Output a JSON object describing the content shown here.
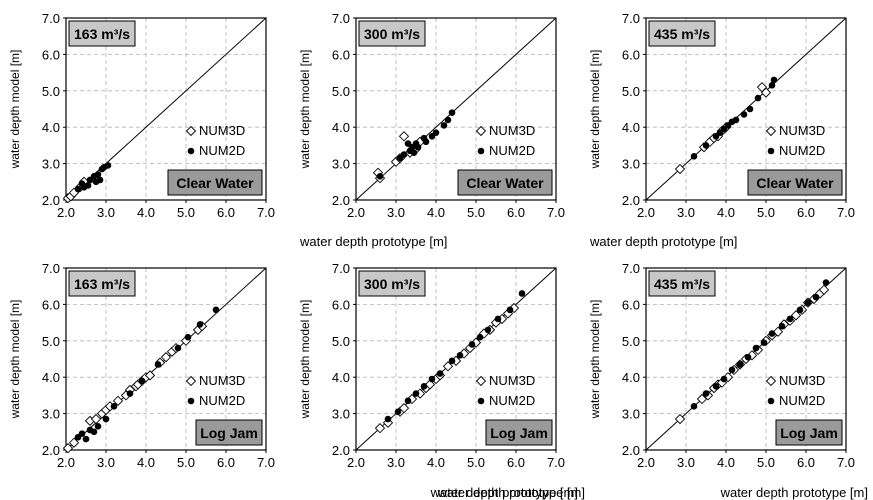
{
  "chart_data": [
    {
      "type": "scatter",
      "title": "163 m³/s",
      "condition": "Clear Water",
      "xlabel": "",
      "ylabel": "water depth model [m]",
      "xlim": [
        2.0,
        7.0
      ],
      "ylim": [
        2.0,
        7.0
      ],
      "xticks": [
        "2.0",
        "3.0",
        "4.0",
        "5.0",
        "6.0",
        "7.0"
      ],
      "yticks": [
        "2.0",
        "3.0",
        "4.0",
        "5.0",
        "6.0",
        "7.0"
      ],
      "grid": true,
      "reference_line": "y = x",
      "legend": [
        "NUM3D",
        "NUM2D"
      ],
      "series": [
        {
          "name": "NUM3D",
          "marker": "open-diamond",
          "x": [
            2.05,
            2.12,
            2.2,
            2.35,
            2.45
          ],
          "y": [
            2.05,
            2.1,
            2.2,
            2.35,
            2.5
          ]
        },
        {
          "name": "NUM2D",
          "marker": "filled-circle",
          "x": [
            2.3,
            2.4,
            2.45,
            2.55,
            2.6,
            2.7,
            2.75,
            2.8,
            2.85,
            2.9,
            2.95,
            3.05
          ],
          "y": [
            2.3,
            2.45,
            2.35,
            2.4,
            2.55,
            2.65,
            2.5,
            2.7,
            2.55,
            2.85,
            2.9,
            2.95
          ]
        }
      ]
    },
    {
      "type": "scatter",
      "title": "300 m³/s",
      "condition": "Clear Water",
      "xlabel": "water depth prototype [m]",
      "ylabel": "water depth model [m]",
      "xlim": [
        2.0,
        7.0
      ],
      "ylim": [
        2.0,
        7.0
      ],
      "xticks": [
        "2.0",
        "3.0",
        "4.0",
        "5.0",
        "6.0",
        "7.0"
      ],
      "yticks": [
        "2.0",
        "3.0",
        "4.0",
        "5.0",
        "6.0",
        "7.0"
      ],
      "grid": true,
      "reference_line": "y = x",
      "legend": [
        "NUM3D",
        "NUM2D"
      ],
      "series": [
        {
          "name": "NUM3D",
          "marker": "open-diamond",
          "x": [
            2.55,
            2.6,
            3.0,
            3.1,
            3.2,
            3.35,
            3.5,
            3.6
          ],
          "y": [
            2.75,
            2.6,
            3.05,
            3.15,
            3.75,
            3.3,
            3.4,
            3.6
          ]
        },
        {
          "name": "NUM2D",
          "marker": "filled-circle",
          "x": [
            2.6,
            3.1,
            3.2,
            3.3,
            3.35,
            3.4,
            3.45,
            3.5,
            3.55,
            3.7,
            3.75,
            3.9,
            4.0,
            4.2,
            4.3,
            4.4
          ],
          "y": [
            2.65,
            3.15,
            3.25,
            3.55,
            3.35,
            3.45,
            3.3,
            3.55,
            3.45,
            3.7,
            3.6,
            3.75,
            3.85,
            4.05,
            4.2,
            4.4
          ]
        }
      ]
    },
    {
      "type": "scatter",
      "title": "435 m³/s",
      "condition": "Clear Water",
      "xlabel": "water depth prototype [m]",
      "ylabel": "water depth model [m]",
      "xlim": [
        2.0,
        7.0
      ],
      "ylim": [
        2.0,
        7.0
      ],
      "xticks": [
        "2.0",
        "3.0",
        "4.0",
        "5.0",
        "6.0",
        "7.0"
      ],
      "yticks": [
        "2.0",
        "3.0",
        "4.0",
        "5.0",
        "6.0",
        "7.0"
      ],
      "grid": true,
      "reference_line": "y = x",
      "legend": [
        "NUM3D",
        "NUM2D"
      ],
      "series": [
        {
          "name": "NUM3D",
          "marker": "open-diamond",
          "x": [
            2.85,
            3.45,
            3.6,
            3.7,
            3.8,
            3.9,
            4.0,
            4.9,
            5.0
          ],
          "y": [
            2.85,
            3.45,
            3.6,
            3.7,
            3.75,
            3.9,
            4.0,
            5.1,
            4.95
          ]
        },
        {
          "name": "NUM2D",
          "marker": "filled-circle",
          "x": [
            3.2,
            3.5,
            3.75,
            3.85,
            3.95,
            4.05,
            4.15,
            4.25,
            4.45,
            4.6,
            4.8,
            5.15,
            5.2
          ],
          "y": [
            3.2,
            3.5,
            3.75,
            3.85,
            3.95,
            4.05,
            4.15,
            4.2,
            4.35,
            4.5,
            4.8,
            5.15,
            5.3
          ]
        }
      ]
    },
    {
      "type": "scatter",
      "title": "163 m³/s",
      "condition": "Log Jam",
      "xlabel": "water depth prototype [m]",
      "ylabel": "water depth model [m]",
      "xlim": [
        2.0,
        7.0
      ],
      "ylim": [
        2.0,
        7.0
      ],
      "xticks": [
        "2.0",
        "3.0",
        "4.0",
        "5.0",
        "6.0",
        "7.0"
      ],
      "yticks": [
        "2.0",
        "3.0",
        "4.0",
        "5.0",
        "6.0",
        "7.0"
      ],
      "grid": true,
      "reference_line": "y = x",
      "legend": [
        "NUM3D",
        "NUM2D"
      ],
      "series": [
        {
          "name": "NUM3D",
          "marker": "open-diamond",
          "x": [
            2.05,
            2.2,
            2.6,
            2.75,
            2.9,
            3.0,
            3.1,
            3.3,
            3.5,
            3.6,
            3.75,
            3.8,
            3.9,
            4.0,
            4.1,
            4.35,
            4.5,
            4.65,
            4.75,
            5.0,
            5.3,
            5.4
          ],
          "y": [
            2.05,
            2.2,
            2.8,
            2.85,
            3.0,
            3.1,
            3.2,
            3.35,
            3.5,
            3.65,
            3.75,
            3.8,
            3.9,
            4.0,
            4.05,
            4.4,
            4.55,
            4.7,
            4.8,
            5.0,
            5.3,
            5.4
          ]
        },
        {
          "name": "NUM2D",
          "marker": "filled-circle",
          "x": [
            2.3,
            2.4,
            2.5,
            2.6,
            2.7,
            2.8,
            3.0,
            3.2,
            3.6,
            3.9,
            4.3,
            4.8,
            5.05,
            5.35,
            5.75
          ],
          "y": [
            2.35,
            2.45,
            2.3,
            2.55,
            2.5,
            2.65,
            2.85,
            3.2,
            3.55,
            3.9,
            4.35,
            4.8,
            5.1,
            5.45,
            5.85
          ]
        }
      ]
    },
    {
      "type": "scatter",
      "title": "300 m³/s",
      "condition": "Log Jam",
      "xlabel": "water depth prototype [m]",
      "ylabel": "water depth model [m]",
      "xlim": [
        2.0,
        7.0
      ],
      "ylim": [
        2.0,
        7.0
      ],
      "xticks": [
        "2.0",
        "3.0",
        "4.0",
        "5.0",
        "6.0",
        "7.0"
      ],
      "yticks": [
        "2.0",
        "3.0",
        "4.0",
        "5.0",
        "6.0",
        "7.0"
      ],
      "grid": true,
      "reference_line": "y = x",
      "legend": [
        "NUM3D",
        "NUM2D"
      ],
      "series": [
        {
          "name": "NUM3D",
          "marker": "open-diamond",
          "x": [
            2.6,
            2.8,
            3.1,
            3.2,
            3.4,
            3.6,
            3.75,
            3.85,
            4.0,
            4.1,
            4.3,
            4.5,
            4.7,
            4.85,
            5.0,
            5.2,
            5.35,
            5.5,
            5.65,
            5.8,
            5.95
          ],
          "y": [
            2.6,
            2.75,
            3.05,
            3.15,
            3.4,
            3.55,
            3.7,
            3.8,
            3.95,
            4.05,
            4.3,
            4.45,
            4.65,
            4.8,
            4.95,
            5.2,
            5.3,
            5.5,
            5.6,
            5.75,
            5.9
          ]
        },
        {
          "name": "NUM2D",
          "marker": "filled-circle",
          "x": [
            2.8,
            3.05,
            3.3,
            3.5,
            3.7,
            3.9,
            4.1,
            4.4,
            4.6,
            4.9,
            5.1,
            5.3,
            5.55,
            5.85,
            6.15
          ],
          "y": [
            2.85,
            3.05,
            3.35,
            3.55,
            3.75,
            3.95,
            4.1,
            4.45,
            4.6,
            4.9,
            5.1,
            5.3,
            5.6,
            5.85,
            6.3
          ]
        }
      ]
    },
    {
      "type": "scatter",
      "title": "435 m³/s",
      "condition": "Log Jam",
      "xlabel": "water depth prototype [m]",
      "ylabel": "water depth model [m]",
      "xlim": [
        2.0,
        7.0
      ],
      "ylim": [
        2.0,
        7.0
      ],
      "xticks": [
        "2.0",
        "3.0",
        "4.0",
        "5.0",
        "6.0",
        "7.0"
      ],
      "yticks": [
        "2.0",
        "3.0",
        "4.0",
        "5.0",
        "6.0",
        "7.0"
      ],
      "grid": true,
      "reference_line": "y = x",
      "legend": [
        "NUM3D",
        "NUM2D"
      ],
      "series": [
        {
          "name": "NUM3D",
          "marker": "open-diamond",
          "x": [
            2.85,
            3.4,
            3.55,
            3.7,
            3.8,
            3.9,
            4.05,
            4.2,
            4.35,
            4.5,
            4.65,
            4.8,
            5.0,
            5.15,
            5.3,
            5.45,
            5.6,
            5.75,
            5.9,
            6.05,
            6.2,
            6.35,
            6.45
          ],
          "y": [
            2.85,
            3.4,
            3.5,
            3.7,
            3.8,
            3.85,
            4.0,
            4.2,
            4.35,
            4.5,
            4.6,
            4.75,
            5.0,
            5.15,
            5.25,
            5.45,
            5.55,
            5.7,
            5.85,
            6.05,
            6.15,
            6.3,
            6.4
          ]
        },
        {
          "name": "NUM2D",
          "marker": "filled-circle",
          "x": [
            3.2,
            3.5,
            3.75,
            3.95,
            4.15,
            4.35,
            4.55,
            4.75,
            4.95,
            5.15,
            5.4,
            5.6,
            5.85,
            6.05,
            6.25,
            6.5
          ],
          "y": [
            3.2,
            3.55,
            3.75,
            3.95,
            4.2,
            4.35,
            4.55,
            4.8,
            4.95,
            5.2,
            5.4,
            5.6,
            5.85,
            6.05,
            6.2,
            6.6
          ]
        }
      ]
    }
  ]
}
